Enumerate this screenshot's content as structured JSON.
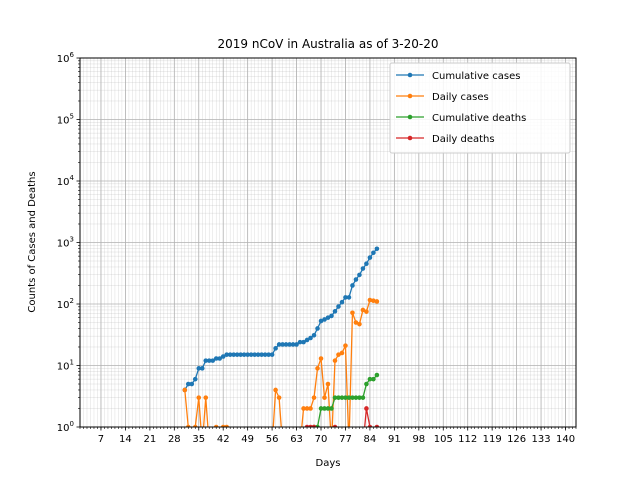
{
  "chart_data": {
    "type": "line",
    "title": "2019 nCoV in Australia as of 3-20-20",
    "xlabel": "Days",
    "ylabel": "Counts of Cases and Deaths",
    "xlim": [
      1,
      143
    ],
    "ylim": [
      1,
      1000000
    ],
    "yscale": "log",
    "x_ticks": [
      7,
      14,
      21,
      28,
      35,
      42,
      49,
      56,
      63,
      70,
      77,
      84,
      91,
      98,
      105,
      112,
      119,
      126,
      133,
      140
    ],
    "y_ticks": [
      {
        "value": 1,
        "base": "10",
        "exp": "0"
      },
      {
        "value": 10,
        "base": "10",
        "exp": "1"
      },
      {
        "value": 100,
        "base": "10",
        "exp": "2"
      },
      {
        "value": 1000,
        "base": "10",
        "exp": "3"
      },
      {
        "value": 10000,
        "base": "10",
        "exp": "4"
      },
      {
        "value": 100000,
        "base": "10",
        "exp": "5"
      },
      {
        "value": 1000000,
        "base": "10",
        "exp": "6"
      }
    ],
    "grid": true,
    "legend_position": "top-right",
    "series": [
      {
        "name": "Cumulative cases",
        "color": "#1f77b4",
        "points": [
          [
            31,
            4
          ],
          [
            32,
            5
          ],
          [
            33,
            5
          ],
          [
            34,
            6
          ],
          [
            35,
            9
          ],
          [
            36,
            9
          ],
          [
            37,
            12
          ],
          [
            38,
            12
          ],
          [
            39,
            12
          ],
          [
            40,
            13
          ],
          [
            41,
            13
          ],
          [
            42,
            14
          ],
          [
            43,
            15
          ],
          [
            44,
            15
          ],
          [
            45,
            15
          ],
          [
            46,
            15
          ],
          [
            47,
            15
          ],
          [
            48,
            15
          ],
          [
            49,
            15
          ],
          [
            50,
            15
          ],
          [
            51,
            15
          ],
          [
            52,
            15
          ],
          [
            53,
            15
          ],
          [
            54,
            15
          ],
          [
            55,
            15
          ],
          [
            56,
            15
          ],
          [
            57,
            19
          ],
          [
            58,
            22
          ],
          [
            59,
            22
          ],
          [
            60,
            22
          ],
          [
            61,
            22
          ],
          [
            62,
            22
          ],
          [
            63,
            22
          ],
          [
            64,
            24
          ],
          [
            65,
            24
          ],
          [
            66,
            26
          ],
          [
            67,
            28
          ],
          [
            68,
            31
          ],
          [
            69,
            40
          ],
          [
            70,
            53
          ],
          [
            71,
            56
          ],
          [
            72,
            60
          ],
          [
            73,
            64
          ],
          [
            74,
            76
          ],
          [
            75,
            91
          ],
          [
            76,
            107
          ],
          [
            77,
            128
          ],
          [
            78,
            128
          ],
          [
            79,
            200
          ],
          [
            80,
            250
          ],
          [
            81,
            297
          ],
          [
            82,
            377
          ],
          [
            83,
            452
          ],
          [
            84,
            568
          ],
          [
            85,
            681
          ],
          [
            86,
            791
          ]
        ]
      },
      {
        "name": "Daily cases",
        "color": "#ff7f0e",
        "points": [
          [
            31,
            4
          ],
          [
            32,
            1
          ],
          [
            33,
            null
          ],
          [
            34,
            1
          ],
          [
            35,
            3
          ],
          [
            36,
            null
          ],
          [
            37,
            3
          ],
          [
            38,
            null
          ],
          [
            39,
            null
          ],
          [
            40,
            1
          ],
          [
            41,
            null
          ],
          [
            42,
            1
          ],
          [
            43,
            1
          ],
          [
            44,
            null
          ],
          [
            45,
            null
          ],
          [
            46,
            null
          ],
          [
            47,
            null
          ],
          [
            48,
            null
          ],
          [
            49,
            null
          ],
          [
            50,
            null
          ],
          [
            51,
            null
          ],
          [
            52,
            null
          ],
          [
            53,
            null
          ],
          [
            54,
            null
          ],
          [
            55,
            null
          ],
          [
            56,
            null
          ],
          [
            57,
            4
          ],
          [
            58,
            3
          ],
          [
            59,
            null
          ],
          [
            60,
            null
          ],
          [
            61,
            null
          ],
          [
            62,
            null
          ],
          [
            63,
            null
          ],
          [
            64,
            null
          ],
          [
            65,
            2
          ],
          [
            66,
            2
          ],
          [
            67,
            2
          ],
          [
            68,
            3
          ],
          [
            69,
            9
          ],
          [
            70,
            13
          ],
          [
            71,
            3
          ],
          [
            72,
            5
          ],
          [
            73,
            null
          ],
          [
            74,
            12
          ],
          [
            75,
            15
          ],
          [
            76,
            16
          ],
          [
            77,
            21
          ],
          [
            78,
            null
          ],
          [
            79,
            72
          ],
          [
            80,
            50
          ],
          [
            81,
            47
          ],
          [
            82,
            80
          ],
          [
            83,
            75
          ],
          [
            84,
            116
          ],
          [
            85,
            113
          ],
          [
            86,
            110
          ]
        ]
      },
      {
        "name": "Cumulative deaths",
        "color": "#2ca02c",
        "points": [
          [
            68,
            1
          ],
          [
            69,
            1
          ],
          [
            70,
            2
          ],
          [
            71,
            2
          ],
          [
            72,
            2
          ],
          [
            73,
            2
          ],
          [
            74,
            3
          ],
          [
            75,
            3
          ],
          [
            76,
            3
          ],
          [
            77,
            3
          ],
          [
            78,
            3
          ],
          [
            79,
            3
          ],
          [
            80,
            3
          ],
          [
            81,
            3
          ],
          [
            82,
            3
          ],
          [
            83,
            5
          ],
          [
            84,
            6
          ],
          [
            85,
            6
          ],
          [
            86,
            7
          ]
        ]
      },
      {
        "name": "Daily deaths",
        "color": "#d62728",
        "points": [
          [
            65,
            null
          ],
          [
            66,
            1
          ],
          [
            67,
            1
          ],
          [
            68,
            1
          ],
          [
            69,
            null
          ],
          [
            70,
            null
          ],
          [
            71,
            null
          ],
          [
            72,
            null
          ],
          [
            73,
            null
          ],
          [
            74,
            1
          ],
          [
            75,
            null
          ],
          [
            76,
            null
          ],
          [
            77,
            null
          ],
          [
            78,
            null
          ],
          [
            79,
            null
          ],
          [
            80,
            null
          ],
          [
            81,
            null
          ],
          [
            82,
            null
          ],
          [
            83,
            2
          ],
          [
            84,
            1
          ],
          [
            85,
            null
          ],
          [
            86,
            1
          ]
        ]
      }
    ]
  }
}
